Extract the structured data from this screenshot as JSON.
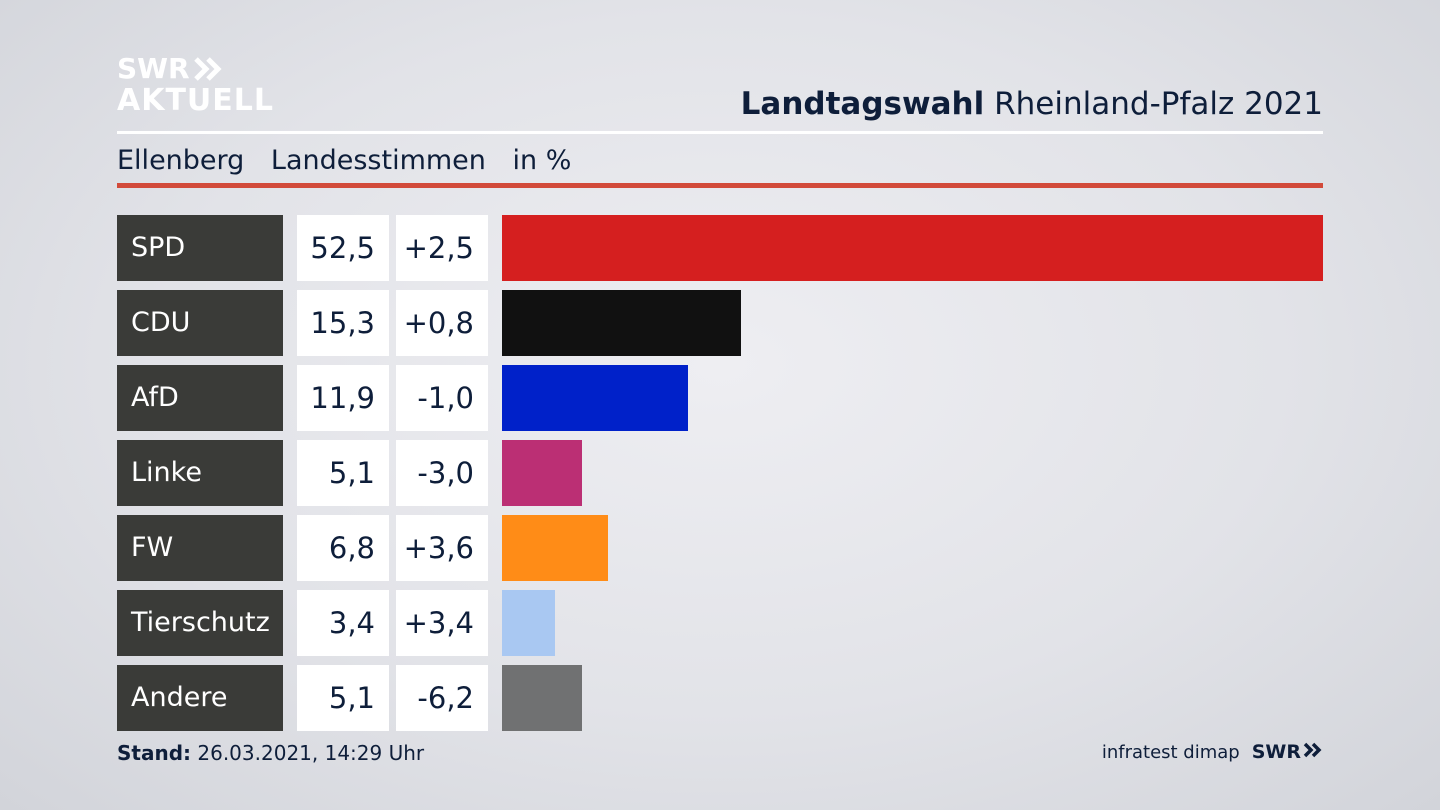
{
  "logo": {
    "line1": "SWR",
    "line2": "AKTUELL"
  },
  "header": {
    "title_bold": "Landtagswahl",
    "title_rest": "Rheinland-Pfalz 2021"
  },
  "subheader": {
    "place": "Ellenberg",
    "measure": "Landesstimmen",
    "unit": "in %"
  },
  "colors": {
    "accent_rule": "#d24a3a"
  },
  "chart_data": {
    "type": "bar",
    "orientation": "horizontal",
    "categories": [
      "SPD",
      "CDU",
      "AfD",
      "Linke",
      "FW",
      "Tierschutz",
      "Andere"
    ],
    "values": [
      52.5,
      15.3,
      11.9,
      5.1,
      6.8,
      3.4,
      5.1
    ],
    "value_labels": [
      "52,5",
      "15,3",
      "11,9",
      "5,1",
      "6,8",
      "3,4",
      "5,1"
    ],
    "change_labels": [
      "+2,5",
      "+0,8",
      "-1,0",
      "-3,0",
      "+3,6",
      "+3,4",
      "-6,2"
    ],
    "changes": [
      2.5,
      0.8,
      -1.0,
      -3.0,
      3.6,
      3.4,
      -6.2
    ],
    "colors": [
      "#d51f1f",
      "#111111",
      "#0021c9",
      "#bb2f74",
      "#ff8c17",
      "#a9c8f2",
      "#707172"
    ],
    "xlim": [
      0,
      52.5
    ],
    "grid": false,
    "legend": "none"
  },
  "footer": {
    "stand_label": "Stand:",
    "stand_value": "26.03.2021, 14:29 Uhr",
    "source": "infratest dimap",
    "brand": "SWR"
  }
}
